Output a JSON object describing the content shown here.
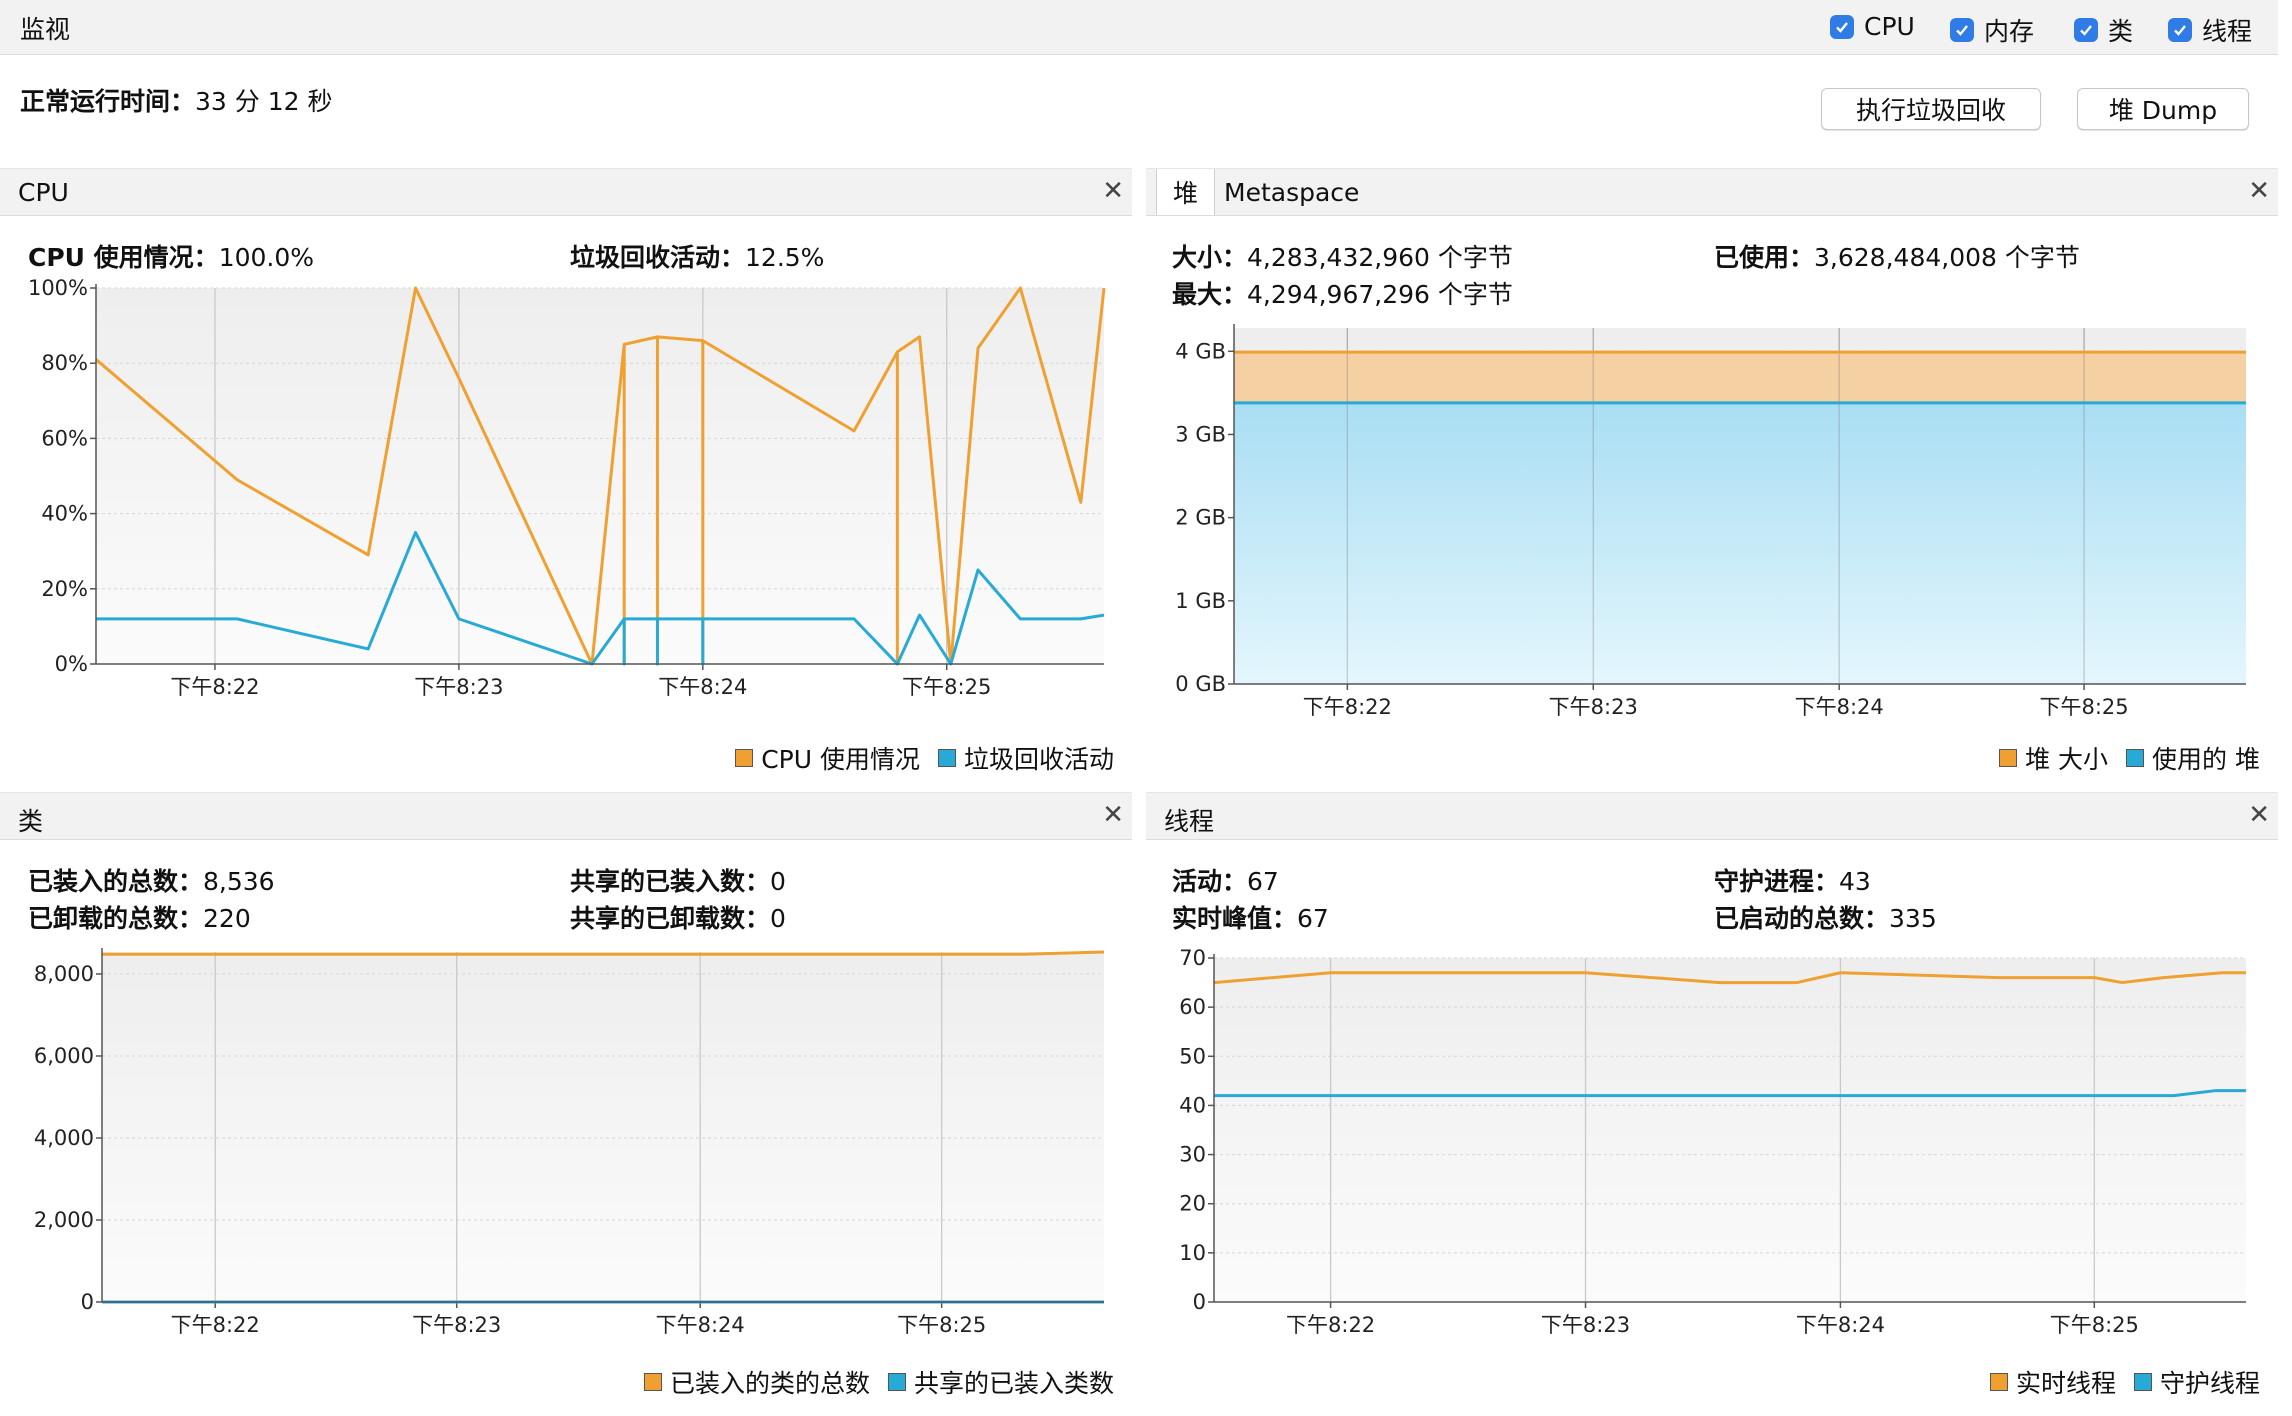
{
  "header": {
    "title": "监视"
  },
  "toggles": [
    {
      "label": "CPU",
      "checked": true
    },
    {
      "label": "内存",
      "checked": true
    },
    {
      "label": "类",
      "checked": true
    },
    {
      "label": "线程",
      "checked": true
    }
  ],
  "uptime": {
    "label": "正常运行时间：",
    "value": "33 分 12 秒"
  },
  "buttons": {
    "gc": "执行垃圾回收",
    "heap_dump": "堆 Dump"
  },
  "colors": {
    "orange": "#f0a030",
    "blue": "#27aad6",
    "heap_fill": "#f5d0a2",
    "used_fill": "#b8e6f7"
  },
  "cpu": {
    "title": "CPU",
    "usage_label": "CPU 使用情况：",
    "usage_value": "100.0%",
    "gc_label": "垃圾回收活动：",
    "gc_value": "12.5%",
    "legend": [
      "CPU 使用情况",
      "垃圾回收活动"
    ]
  },
  "memory": {
    "tabs": [
      "堆",
      "Metaspace"
    ],
    "size_label": "大小：",
    "size_value": "4,283,432,960 个字节",
    "used_label": "已使用：",
    "used_value": "3,628,484,008 个字节",
    "max_label": "最大：",
    "max_value": "4,294,967,296 个字节",
    "legend": [
      "堆 大小",
      "使用的 堆"
    ]
  },
  "classes": {
    "title": "类",
    "loaded_label": "已装入的总数：",
    "loaded_value": "8,536",
    "unloaded_label": "已卸载的总数：",
    "unloaded_value": "220",
    "shared_loaded_label": "共享的已装入数：",
    "shared_loaded_value": "0",
    "shared_unloaded_label": "共享的已卸载数：",
    "shared_unloaded_value": "0",
    "legend": [
      "已装入的类的总数",
      "共享的已装入类数"
    ]
  },
  "threads": {
    "title": "线程",
    "live_label": "活动：",
    "live_value": "67",
    "daemon_label": "守护进程：",
    "daemon_value": "43",
    "peak_label": "实时峰值：",
    "peak_value": "67",
    "started_label": "已启动的总数：",
    "started_value": "335",
    "legend": [
      "实时线程",
      "守护线程"
    ]
  },
  "chart_data": [
    {
      "type": "line",
      "name": "cpu",
      "xlim": [
        0,
        1
      ],
      "ylim": [
        0,
        100
      ],
      "x_ticks": [
        {
          "x": 0.118,
          "label": "下午8:22"
        },
        {
          "x": 0.36,
          "label": "下午8:23"
        },
        {
          "x": 0.602,
          "label": "下午8:24"
        },
        {
          "x": 0.844,
          "label": "下午8:25"
        }
      ],
      "y_ticks": [
        {
          "v": 0,
          "label": "0%"
        },
        {
          "v": 20,
          "label": "20%"
        },
        {
          "v": 40,
          "label": "40%"
        },
        {
          "v": 60,
          "label": "60%"
        },
        {
          "v": 80,
          "label": "80%"
        },
        {
          "v": 100,
          "label": "100%"
        }
      ],
      "series": [
        {
          "name": "CPU 使用情况",
          "color": "#f0a030",
          "points": [
            [
              0,
              81
            ],
            [
              0.14,
              49
            ],
            [
              0.27,
              29
            ],
            [
              0.317,
              100
            ],
            [
              0.36,
              76
            ],
            [
              0.492,
              0
            ],
            [
              0.524,
              85
            ],
            [
              0.524,
              0
            ],
            [
              0.524,
              85
            ],
            [
              0.557,
              87
            ],
            [
              0.557,
              0
            ],
            [
              0.557,
              87
            ],
            [
              0.602,
              86
            ],
            [
              0.602,
              0
            ],
            [
              0.602,
              86
            ],
            [
              0.752,
              62
            ],
            [
              0.795,
              83
            ],
            [
              0.795,
              0
            ],
            [
              0.795,
              83
            ],
            [
              0.817,
              87
            ],
            [
              0.848,
              0
            ],
            [
              0.875,
              84
            ],
            [
              0.917,
              100
            ],
            [
              0.977,
              43
            ],
            [
              1,
              100
            ]
          ]
        },
        {
          "name": "垃圾回收活动",
          "color": "#27aad6",
          "points": [
            [
              0,
              12
            ],
            [
              0.14,
              12
            ],
            [
              0.27,
              4
            ],
            [
              0.317,
              35
            ],
            [
              0.36,
              12
            ],
            [
              0.492,
              0
            ],
            [
              0.524,
              12
            ],
            [
              0.524,
              0
            ],
            [
              0.524,
              12
            ],
            [
              0.557,
              12
            ],
            [
              0.557,
              0
            ],
            [
              0.557,
              12
            ],
            [
              0.602,
              12
            ],
            [
              0.602,
              0
            ],
            [
              0.602,
              12
            ],
            [
              0.752,
              12
            ],
            [
              0.795,
              0
            ],
            [
              0.817,
              13
            ],
            [
              0.848,
              0
            ],
            [
              0.875,
              25
            ],
            [
              0.917,
              12
            ],
            [
              0.977,
              12
            ],
            [
              1,
              13
            ]
          ]
        }
      ]
    },
    {
      "type": "area",
      "name": "heap",
      "xlim": [
        0,
        1
      ],
      "ylim": [
        0,
        4.28
      ],
      "x_ticks": [
        {
          "x": 0.112,
          "label": "下午8:22"
        },
        {
          "x": 0.355,
          "label": "下午8:23"
        },
        {
          "x": 0.598,
          "label": "下午8:24"
        },
        {
          "x": 0.84,
          "label": "下午8:25"
        }
      ],
      "y_ticks": [
        {
          "v": 0,
          "label": "0 GB"
        },
        {
          "v": 1,
          "label": "1 GB"
        },
        {
          "v": 2,
          "label": "2 GB"
        },
        {
          "v": 3,
          "label": "3 GB"
        },
        {
          "v": 4,
          "label": "4 GB"
        }
      ],
      "series": [
        {
          "name": "堆 大小",
          "color": "#f0a030",
          "points": [
            [
              0,
              3.99
            ],
            [
              1,
              3.99
            ]
          ]
        },
        {
          "name": "使用的 堆",
          "color": "#27aad6",
          "points": [
            [
              0,
              3.38
            ],
            [
              1,
              3.38
            ]
          ]
        }
      ]
    },
    {
      "type": "line",
      "name": "classes",
      "xlim": [
        0,
        1
      ],
      "ylim": [
        0,
        8536
      ],
      "x_ticks": [
        {
          "x": 0.113,
          "label": "下午8:22"
        },
        {
          "x": 0.354,
          "label": "下午8:23"
        },
        {
          "x": 0.597,
          "label": "下午8:24"
        },
        {
          "x": 0.838,
          "label": "下午8:25"
        }
      ],
      "y_ticks": [
        {
          "v": 0,
          "label": "0"
        },
        {
          "v": 2000,
          "label": "2,000"
        },
        {
          "v": 4000,
          "label": "4,000"
        },
        {
          "v": 6000,
          "label": "6,000"
        },
        {
          "v": 8000,
          "label": "8,000"
        }
      ],
      "series": [
        {
          "name": "已装入的类的总数",
          "color": "#f0a030",
          "points": [
            [
              0,
              8480
            ],
            [
              0.92,
              8480
            ],
            [
              1,
              8536
            ]
          ]
        },
        {
          "name": "共享的已装入类数",
          "color": "#27aad6",
          "points": [
            [
              0,
              0
            ],
            [
              1,
              0
            ]
          ]
        }
      ]
    },
    {
      "type": "line",
      "name": "threads",
      "xlim": [
        0,
        1
      ],
      "ylim": [
        0,
        70
      ],
      "x_ticks": [
        {
          "x": 0.113,
          "label": "下午8:22"
        },
        {
          "x": 0.36,
          "label": "下午8:23"
        },
        {
          "x": 0.607,
          "label": "下午8:24"
        },
        {
          "x": 0.853,
          "label": "下午8:25"
        }
      ],
      "y_ticks": [
        {
          "v": 0,
          "label": "0"
        },
        {
          "v": 10,
          "label": "10"
        },
        {
          "v": 20,
          "label": "20"
        },
        {
          "v": 30,
          "label": "30"
        },
        {
          "v": 40,
          "label": "40"
        },
        {
          "v": 50,
          "label": "50"
        },
        {
          "v": 60,
          "label": "60"
        },
        {
          "v": 70,
          "label": "70"
        }
      ],
      "series": [
        {
          "name": "实时线程",
          "color": "#f0a030",
          "points": [
            [
              0,
              65
            ],
            [
              0.113,
              67
            ],
            [
              0.36,
              67
            ],
            [
              0.49,
              65
            ],
            [
              0.565,
              65
            ],
            [
              0.607,
              67
            ],
            [
              0.76,
              66
            ],
            [
              0.853,
              66
            ],
            [
              0.88,
              65
            ],
            [
              0.92,
              66
            ],
            [
              0.977,
              67
            ],
            [
              1,
              67
            ]
          ]
        },
        {
          "name": "守护线程",
          "color": "#27aad6",
          "points": [
            [
              0,
              42
            ],
            [
              0.93,
              42
            ],
            [
              0.97,
              43
            ],
            [
              1,
              43
            ]
          ]
        }
      ]
    }
  ]
}
